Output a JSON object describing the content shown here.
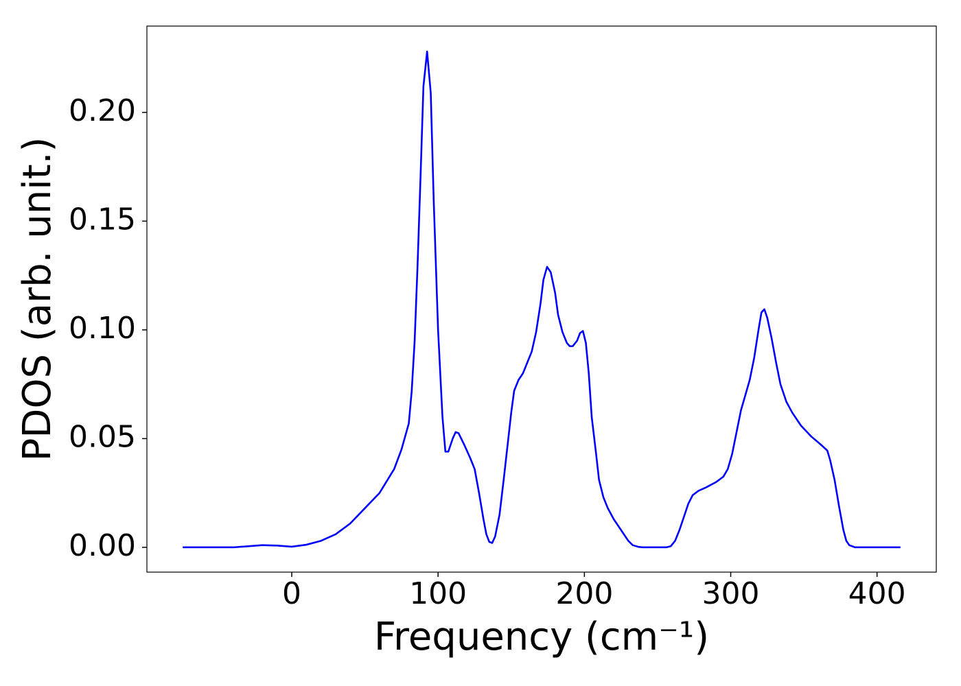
{
  "chart_data": {
    "type": "line",
    "xlabel": "Frequency (cm⁻¹)",
    "ylabel": "PDOS (arb. unit.)",
    "xlim": [
      -99,
      440.5
    ],
    "ylim": [
      -0.0114,
      0.2397
    ],
    "xticks": [
      0,
      100,
      200,
      300,
      400
    ],
    "yticks": [
      {
        "value": 0,
        "label": "0.00"
      },
      {
        "value": 0.05,
        "label": "0.05"
      },
      {
        "value": 0.1,
        "label": "0.10"
      },
      {
        "value": 0.15,
        "label": "0.15"
      },
      {
        "value": 0.2,
        "label": "0.20"
      }
    ],
    "grid": false,
    "x": [
      -74.5,
      -40,
      -30,
      -20,
      -10,
      0,
      10,
      20,
      30,
      40,
      50,
      60,
      70,
      75,
      80,
      82,
      84,
      86,
      88,
      90,
      92.5,
      95,
      97,
      100,
      103,
      105,
      107,
      110,
      112,
      114,
      118,
      122,
      125,
      128,
      131,
      133,
      135,
      137,
      139,
      142,
      145,
      148,
      150,
      152,
      155,
      158,
      161,
      164,
      167,
      170,
      172,
      174.5,
      177,
      180,
      182,
      185,
      188,
      190,
      192,
      195,
      197,
      199,
      201,
      203,
      205,
      208,
      210,
      213,
      216,
      220,
      225,
      230,
      233,
      237,
      240,
      256,
      259,
      262,
      265,
      268,
      271,
      274,
      278,
      283,
      290,
      295,
      298,
      301,
      304,
      307,
      310,
      313,
      316,
      319,
      321,
      323,
      325,
      328,
      331,
      334,
      338,
      342,
      348,
      355,
      362,
      366,
      368,
      371,
      374,
      377,
      379,
      381,
      385,
      416
    ],
    "series": [
      {
        "color": "#0000ff",
        "values": [
          0,
          0,
          0.0005,
          0.001,
          0.0008,
          0.0003,
          0.0012,
          0.003,
          0.006,
          0.011,
          0.018,
          0.025,
          0.036,
          0.045,
          0.057,
          0.072,
          0.095,
          0.13,
          0.17,
          0.212,
          0.228,
          0.209,
          0.16,
          0.1,
          0.06,
          0.044,
          0.044,
          0.05,
          0.053,
          0.0525,
          0.047,
          0.041,
          0.036,
          0.025,
          0.013,
          0.006,
          0.0025,
          0.002,
          0.005,
          0.015,
          0.032,
          0.05,
          0.062,
          0.072,
          0.077,
          0.08,
          0.085,
          0.09,
          0.099,
          0.112,
          0.123,
          0.129,
          0.1265,
          0.117,
          0.107,
          0.099,
          0.094,
          0.0925,
          0.0925,
          0.095,
          0.0985,
          0.0995,
          0.094,
          0.08,
          0.06,
          0.043,
          0.031,
          0.023,
          0.018,
          0.013,
          0.008,
          0.003,
          0.001,
          0.0002,
          0,
          0,
          0.0005,
          0.003,
          0.008,
          0.014,
          0.02,
          0.024,
          0.026,
          0.0275,
          0.03,
          0.0325,
          0.036,
          0.043,
          0.053,
          0.063,
          0.07,
          0.077,
          0.087,
          0.1,
          0.108,
          0.1095,
          0.1055,
          0.096,
          0.085,
          0.075,
          0.067,
          0.062,
          0.056,
          0.051,
          0.047,
          0.0445,
          0.04,
          0.031,
          0.019,
          0.008,
          0.003,
          0.001,
          0,
          0
        ]
      }
    ]
  }
}
